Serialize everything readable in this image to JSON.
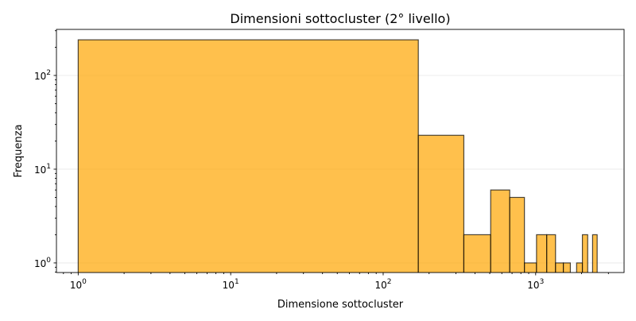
{
  "chart_data": {
    "type": "bar",
    "title": "Dimensioni sottocluster (2° livello)",
    "xlabel": "Dimensione sottocluster",
    "ylabel": "Frequenza",
    "x_scale": "log",
    "y_scale": "log",
    "xlim": [
      0.72,
      3800
    ],
    "ylim": [
      0.79,
      310
    ],
    "x_ticks": [
      {
        "value": 1,
        "base": "10",
        "exp": "0"
      },
      {
        "value": 10,
        "base": "10",
        "exp": "1"
      },
      {
        "value": 100,
        "base": "10",
        "exp": "2"
      },
      {
        "value": 1000,
        "base": "10",
        "exp": "3"
      }
    ],
    "y_ticks": [
      {
        "value": 1,
        "base": "10",
        "exp": "0"
      },
      {
        "value": 10,
        "base": "10",
        "exp": "1"
      },
      {
        "value": 100,
        "base": "10",
        "exp": "2"
      }
    ],
    "grid": "y-major",
    "bar_color": "#FFA500",
    "edge_color": "#000000",
    "bins": [
      {
        "x0": 1,
        "x1": 170,
        "value": 240
      },
      {
        "x0": 170,
        "x1": 338,
        "value": 23
      },
      {
        "x0": 338,
        "x1": 507,
        "value": 2
      },
      {
        "x0": 507,
        "x1": 676,
        "value": 6
      },
      {
        "x0": 676,
        "x1": 844,
        "value": 5
      },
      {
        "x0": 844,
        "x1": 1013,
        "value": 1
      },
      {
        "x0": 1013,
        "x1": 1182,
        "value": 2
      },
      {
        "x0": 1182,
        "x1": 1350,
        "value": 2
      },
      {
        "x0": 1350,
        "x1": 1519,
        "value": 1
      },
      {
        "x0": 1519,
        "x1": 1688,
        "value": 1
      },
      {
        "x0": 1688,
        "x1": 1856,
        "value": 0
      },
      {
        "x0": 1856,
        "x1": 2025,
        "value": 1
      },
      {
        "x0": 2025,
        "x1": 2194,
        "value": 2
      },
      {
        "x0": 2194,
        "x1": 2362,
        "value": 0
      },
      {
        "x0": 2362,
        "x1": 2531,
        "value": 2
      }
    ]
  }
}
